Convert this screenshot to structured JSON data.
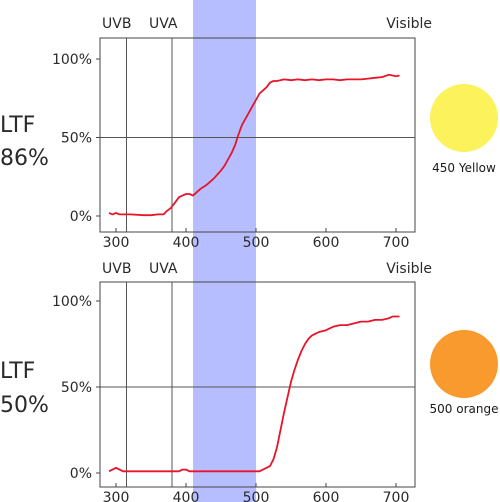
{
  "band": {
    "from": 410,
    "to": 500,
    "color": "#aab3ff"
  },
  "chart_data": [
    {
      "type": "line",
      "lens": {
        "label": "LTF",
        "value": "86%"
      },
      "swatch": {
        "label": "450 Yellow",
        "color": "#fcf25c"
      },
      "region_labels": {
        "uvb": "UVB",
        "uva": "UVA",
        "visible": "Visible"
      },
      "region_boundaries_nm": [
        315,
        380
      ],
      "xlim": [
        280,
        720
      ],
      "ylim": [
        0,
        100
      ],
      "xticks": [
        300,
        400,
        500,
        600,
        700
      ],
      "xtick_labels": [
        "300",
        "400",
        "500",
        "600",
        "700"
      ],
      "yticks": [
        0,
        50,
        100
      ],
      "ytick_labels": [
        "0%",
        "50%",
        "100%"
      ],
      "grid": "horizontal at 50%",
      "series": [
        {
          "color": "#e8142a",
          "x": [
            290,
            295,
            300,
            305,
            310,
            315,
            320,
            340,
            350,
            360,
            368,
            372,
            378,
            385,
            390,
            395,
            400,
            405,
            410,
            415,
            420,
            430,
            440,
            450,
            455,
            460,
            465,
            470,
            475,
            480,
            485,
            490,
            495,
            500,
            505,
            510,
            515,
            520,
            525,
            530,
            540,
            550,
            560,
            570,
            580,
            590,
            600,
            610,
            620,
            630,
            640,
            650,
            660,
            670,
            680,
            690,
            695,
            700,
            705
          ],
          "y": [
            2,
            1,
            2,
            1,
            1,
            1,
            1,
            0.5,
            0.5,
            1,
            1,
            3,
            5,
            9,
            12,
            13,
            14,
            14,
            13,
            15,
            17,
            20,
            24,
            29,
            32,
            36,
            40,
            45,
            52,
            58,
            62,
            66,
            70,
            74,
            78,
            80,
            82,
            85,
            86,
            86,
            87,
            86.5,
            87,
            86.5,
            87,
            86.5,
            87,
            87,
            86.5,
            87,
            87,
            87,
            87.5,
            88,
            88.5,
            90,
            89.5,
            89,
            89.5
          ]
        }
      ]
    },
    {
      "type": "line",
      "lens": {
        "label": "LTF",
        "value": "50%"
      },
      "swatch": {
        "label": "500 orange",
        "color": "#f99a2e"
      },
      "region_labels": {
        "uvb": "UVB",
        "uva": "UVA",
        "visible": "Visible"
      },
      "region_boundaries_nm": [
        315,
        380
      ],
      "xlim": [
        280,
        720
      ],
      "ylim": [
        0,
        100
      ],
      "xticks": [
        300,
        400,
        500,
        600,
        700
      ],
      "xtick_labels": [
        "300",
        "400",
        "500",
        "600",
        "700"
      ],
      "yticks": [
        0,
        50,
        100
      ],
      "ytick_labels": [
        "0%",
        "50%",
        "100%"
      ],
      "grid": "horizontal at 50%",
      "series": [
        {
          "color": "#e8142a",
          "x": [
            290,
            300,
            305,
            310,
            315,
            320,
            340,
            360,
            380,
            390,
            395,
            400,
            405,
            410,
            450,
            480,
            500,
            505,
            510,
            520,
            525,
            530,
            535,
            540,
            545,
            550,
            555,
            560,
            565,
            570,
            575,
            580,
            585,
            590,
            600,
            610,
            620,
            630,
            640,
            650,
            660,
            670,
            680,
            690,
            695,
            700,
            705
          ],
          "y": [
            1,
            3,
            2,
            1,
            1,
            1,
            1,
            1,
            1,
            1,
            2,
            2,
            1,
            1,
            1,
            1,
            1,
            1,
            2,
            4,
            8,
            15,
            25,
            35,
            44,
            53,
            60,
            66,
            71,
            75,
            78,
            80,
            81,
            82,
            83,
            85,
            86,
            86,
            87,
            88,
            88,
            89,
            89,
            90,
            91,
            91,
            91
          ]
        }
      ]
    }
  ]
}
